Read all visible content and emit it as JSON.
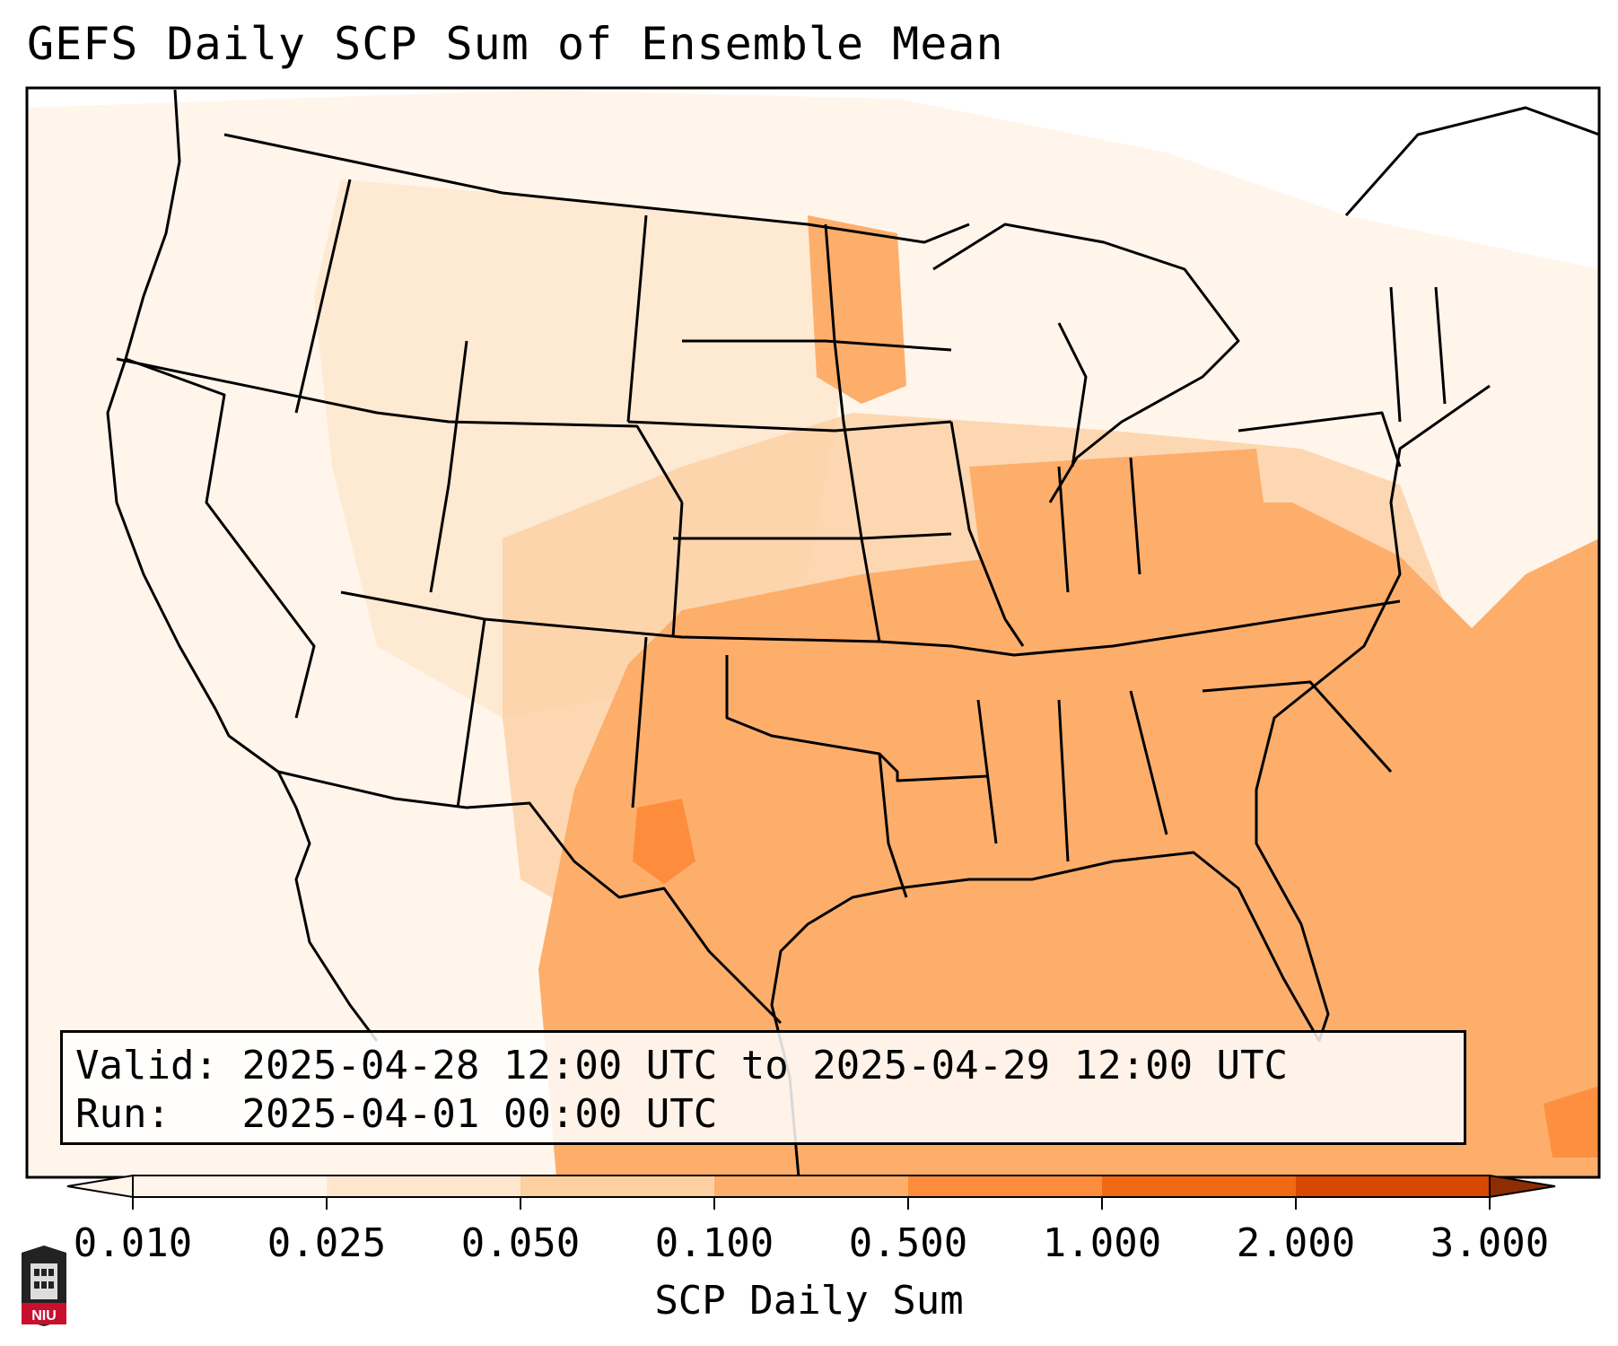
{
  "title": "GEFS Daily SCP Sum of Ensemble Mean",
  "info": {
    "valid_label": "Valid:",
    "valid_value": "2025-04-28 12:00 UTC to 2025-04-29 12:00 UTC",
    "run_label": "Run:",
    "run_value": "2025-04-01 00:00 UTC"
  },
  "colorbar": {
    "label": "SCP Daily Sum",
    "ticks": [
      "0.010",
      "0.025",
      "0.050",
      "0.100",
      "0.500",
      "1.000",
      "2.000",
      "3.000"
    ],
    "colors": [
      "#fff5eb",
      "#fee6ce",
      "#fdd0a2",
      "#fdae6b",
      "#fd8d3c",
      "#f16913",
      "#d94801"
    ],
    "over_color": "#8c2d04",
    "extend": "both"
  },
  "logo": {
    "text": "NIU",
    "color": "#c8102e"
  }
}
